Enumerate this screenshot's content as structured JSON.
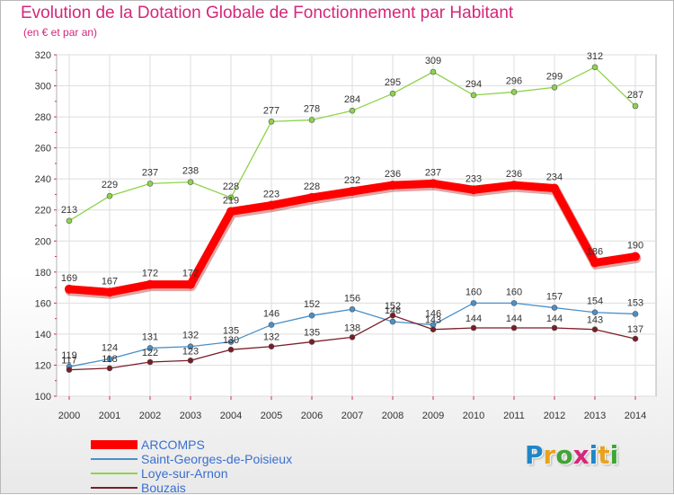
{
  "header": {
    "title": "Evolution de la Dotation Globale de Fonctionnement par Habitant",
    "subtitle": "(en € et par an)"
  },
  "brand": {
    "logo_text": "Proxiti",
    "letters": [
      {
        "char": "P",
        "color": "#1f86c8"
      },
      {
        "char": "r",
        "color": "#e8a21c"
      },
      {
        "char": "o",
        "color": "#3fa535"
      },
      {
        "char": "x",
        "color": "#d6267a"
      },
      {
        "char": "i",
        "color": "#1f86c8"
      },
      {
        "char": "t",
        "color": "#e8a21c"
      },
      {
        "char": "i",
        "color": "#3fa535"
      }
    ]
  },
  "chart_data": {
    "type": "line",
    "title": "Evolution de la Dotation Globale de Fonctionnement par Habitant",
    "subtitle": "(en € et par an)",
    "x": [
      2000,
      2001,
      2002,
      2003,
      2004,
      2005,
      2006,
      2007,
      2008,
      2009,
      2010,
      2011,
      2012,
      2013,
      2014
    ],
    "ylim": [
      100,
      320
    ],
    "yticks": [
      100,
      120,
      140,
      160,
      180,
      200,
      220,
      240,
      260,
      280,
      300,
      320
    ],
    "grid": true,
    "legend_position": "bottom-left",
    "series": [
      {
        "name": "ARCOMPS",
        "color": "#ff0000",
        "values": [
          169,
          167,
          172,
          172,
          219,
          223,
          228,
          232,
          236,
          237,
          233,
          236,
          234,
          186,
          190
        ],
        "labels": [
          "169",
          "167",
          "172",
          "172",
          "219",
          "223",
          "228",
          "232",
          "236",
          "237",
          "233",
          "236",
          "234",
          "186",
          "190"
        ]
      },
      {
        "name": "Saint-Georges-de-Poisieux",
        "color": "#4a90c8",
        "values": [
          119,
          124,
          131,
          132,
          135,
          146,
          152,
          156,
          148,
          146,
          160,
          160,
          157,
          154,
          153
        ],
        "labels": [
          "119",
          "124",
          "131",
          "132",
          "135",
          "146",
          "152",
          "156",
          "148",
          "146",
          "160",
          "160",
          "157",
          "154",
          "153"
        ]
      },
      {
        "name": "Loye-sur-Arnon",
        "color": "#8ed34b",
        "values": [
          213,
          229,
          237,
          238,
          228,
          277,
          278,
          284,
          295,
          309,
          294,
          296,
          299,
          312,
          287
        ],
        "labels": [
          "213",
          "229",
          "237",
          "238",
          "228",
          "277",
          "278",
          "284",
          "295",
          "309",
          "294",
          "296",
          "299",
          "312",
          "287"
        ]
      },
      {
        "name": "Bouzais",
        "color": "#7a1c26",
        "values": [
          117,
          118,
          122,
          123,
          130,
          132,
          135,
          138,
          152,
          143,
          144,
          144,
          144,
          143,
          137
        ],
        "labels": [
          "117",
          "118",
          "122",
          "123",
          "130",
          "132",
          "135",
          "138",
          "152",
          "143",
          "144",
          "144",
          "144",
          "143",
          "137"
        ]
      }
    ]
  }
}
